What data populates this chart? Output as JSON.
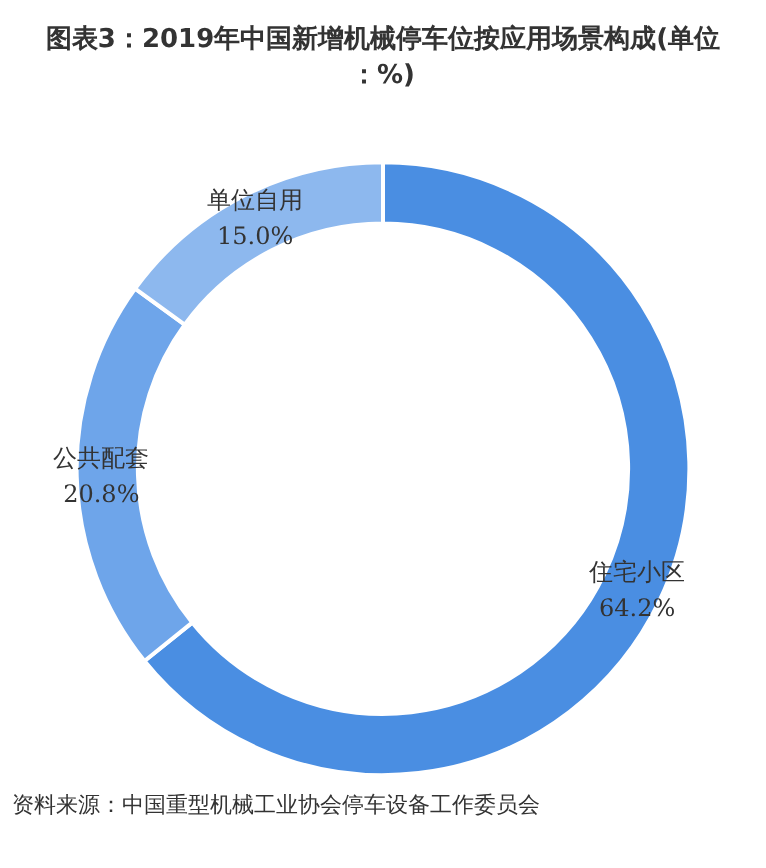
{
  "chart_data": {
    "type": "donut",
    "title": "图表3：2019年中国新增机械停车位按应用场景构成(单位：%)",
    "categories": [
      "住宅小区",
      "公共配套",
      "单位自用"
    ],
    "values": [
      64.2,
      20.8,
      15.0
    ],
    "value_labels": [
      "64.2%",
      "20.8%",
      "15.0%"
    ],
    "colors": [
      "#4a8ee2",
      "#6ea5ea",
      "#8db8ee"
    ],
    "legend": false,
    "annotations": [
      "资料来源：中国重型机械工业协会停车设备工作委员会"
    ]
  }
}
